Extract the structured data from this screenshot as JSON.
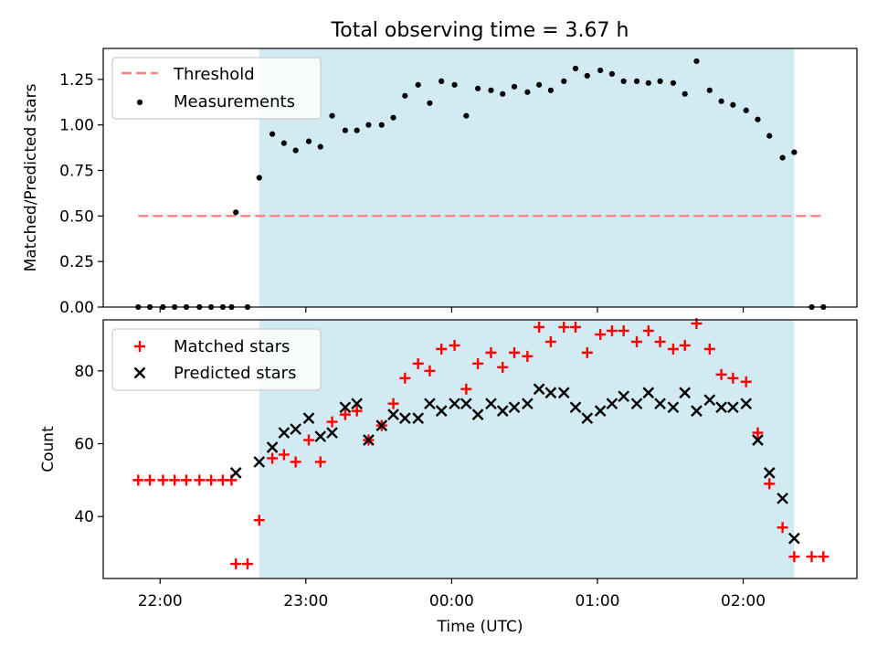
{
  "chart_data": [
    {
      "type": "scatter",
      "title": "Total observing time = 3.67 h",
      "xlabel": "",
      "ylabel": "Matched/Predicted stars",
      "xlim": [
        -2.39,
        2.78
      ],
      "ylim": [
        0,
        1.42
      ],
      "yticks": [
        0.0,
        0.25,
        0.5,
        0.75,
        1.0,
        1.25
      ],
      "ytick_labels": [
        "0.00",
        "0.25",
        "0.50",
        "0.75",
        "1.00",
        "1.25"
      ],
      "shaded_span": [
        -1.32,
        2.35
      ],
      "threshold": {
        "name": "Threshold",
        "value": 0.5,
        "x_range": [
          -2.15,
          2.55
        ],
        "color": "#ff8080"
      },
      "legend": {
        "location": "upper-left",
        "entries": [
          "Threshold",
          "Measurements"
        ]
      },
      "series": [
        {
          "name": "Measurements",
          "color": "#000000",
          "x": [
            -2.15,
            -2.07,
            -1.98,
            -1.9,
            -1.82,
            -1.73,
            -1.65,
            -1.57,
            -1.51,
            -1.48,
            -1.4,
            -1.32,
            -1.23,
            -1.15,
            -1.07,
            -0.98,
            -0.9,
            -0.82,
            -0.73,
            -0.65,
            -0.57,
            -0.48,
            -0.4,
            -0.32,
            -0.23,
            -0.15,
            -0.07,
            0.02,
            0.1,
            0.18,
            0.27,
            0.35,
            0.43,
            0.52,
            0.6,
            0.68,
            0.77,
            0.85,
            0.93,
            1.02,
            1.1,
            1.18,
            1.27,
            1.35,
            1.43,
            1.52,
            1.6,
            1.68,
            1.77,
            1.85,
            1.93,
            2.02,
            2.1,
            2.18,
            2.27,
            2.35,
            2.47,
            2.55
          ],
          "y": [
            0,
            0,
            0,
            0,
            0,
            0,
            0,
            0,
            0,
            0.52,
            0,
            0.71,
            0.95,
            0.9,
            0.86,
            0.91,
            0.88,
            1.05,
            0.97,
            0.97,
            1.0,
            1.0,
            1.04,
            1.16,
            1.22,
            1.12,
            1.24,
            1.22,
            1.05,
            1.2,
            1.19,
            1.17,
            1.21,
            1.18,
            1.22,
            1.19,
            1.24,
            1.31,
            1.27,
            1.3,
            1.28,
            1.24,
            1.24,
            1.23,
            1.24,
            1.23,
            1.17,
            1.35,
            1.19,
            1.13,
            1.11,
            1.08,
            1.03,
            0.94,
            0.82,
            0.85,
            0,
            0
          ]
        }
      ]
    },
    {
      "type": "scatter",
      "title": "",
      "xlabel": "Time (UTC)",
      "ylabel": "Count",
      "xlim": [
        -2.39,
        2.78
      ],
      "ylim": [
        23,
        94
      ],
      "yticks": [
        40,
        60,
        80
      ],
      "ytick_labels": [
        "40",
        "60",
        "80"
      ],
      "xticks": [
        -2,
        -1,
        0,
        1,
        2
      ],
      "xtick_labels": [
        "22:00",
        "23:00",
        "00:00",
        "01:00",
        "02:00"
      ],
      "shaded_span": [
        -1.32,
        2.35
      ],
      "legend": {
        "location": "upper-left",
        "entries": [
          "Matched stars",
          "Predicted stars"
        ]
      },
      "series": [
        {
          "name": "Matched stars",
          "marker": "+",
          "color": "#ff0000",
          "x": [
            -2.15,
            -2.07,
            -1.98,
            -1.9,
            -1.82,
            -1.73,
            -1.65,
            -1.57,
            -1.51,
            -1.48,
            -1.4,
            -1.32,
            -1.23,
            -1.15,
            -1.07,
            -0.98,
            -0.9,
            -0.82,
            -0.73,
            -0.65,
            -0.57,
            -0.48,
            -0.4,
            -0.32,
            -0.23,
            -0.15,
            -0.07,
            0.02,
            0.1,
            0.18,
            0.27,
            0.35,
            0.43,
            0.52,
            0.6,
            0.68,
            0.77,
            0.85,
            0.93,
            1.02,
            1.1,
            1.18,
            1.27,
            1.35,
            1.43,
            1.52,
            1.6,
            1.68,
            1.77,
            1.85,
            1.93,
            2.02,
            2.1,
            2.18,
            2.27,
            2.35,
            2.47,
            2.55
          ],
          "y": [
            50,
            50,
            50,
            50,
            50,
            50,
            50,
            50,
            50,
            27,
            27,
            39,
            56,
            57,
            55,
            61,
            55,
            66,
            68,
            69,
            61,
            65,
            71,
            78,
            82,
            80,
            86,
            87,
            75,
            82,
            85,
            81,
            85,
            84,
            92,
            88,
            92,
            92,
            85,
            90,
            91,
            91,
            88,
            91,
            88,
            86,
            87,
            93,
            86,
            79,
            78,
            77,
            63,
            49,
            37,
            29,
            29,
            29
          ]
        },
        {
          "name": "Predicted stars",
          "marker": "x",
          "color": "#000000",
          "x": [
            -1.48,
            -1.32,
            -1.23,
            -1.15,
            -1.07,
            -0.98,
            -0.9,
            -0.82,
            -0.73,
            -0.65,
            -0.57,
            -0.48,
            -0.4,
            -0.32,
            -0.23,
            -0.15,
            -0.07,
            0.02,
            0.1,
            0.18,
            0.27,
            0.35,
            0.43,
            0.52,
            0.6,
            0.68,
            0.77,
            0.85,
            0.93,
            1.02,
            1.1,
            1.18,
            1.27,
            1.35,
            1.43,
            1.52,
            1.6,
            1.68,
            1.77,
            1.85,
            1.93,
            2.02,
            2.1,
            2.18,
            2.27,
            2.35
          ],
          "y": [
            52,
            55,
            59,
            63,
            64,
            67,
            62,
            63,
            70,
            71,
            61,
            65,
            68,
            67,
            67,
            71,
            69,
            71,
            71,
            68,
            71,
            69,
            70,
            71,
            75,
            74,
            74,
            70,
            67,
            69,
            71,
            73,
            71,
            74,
            71,
            70,
            74,
            69,
            72,
            70,
            70,
            71,
            61,
            52,
            45,
            34
          ]
        }
      ]
    }
  ]
}
